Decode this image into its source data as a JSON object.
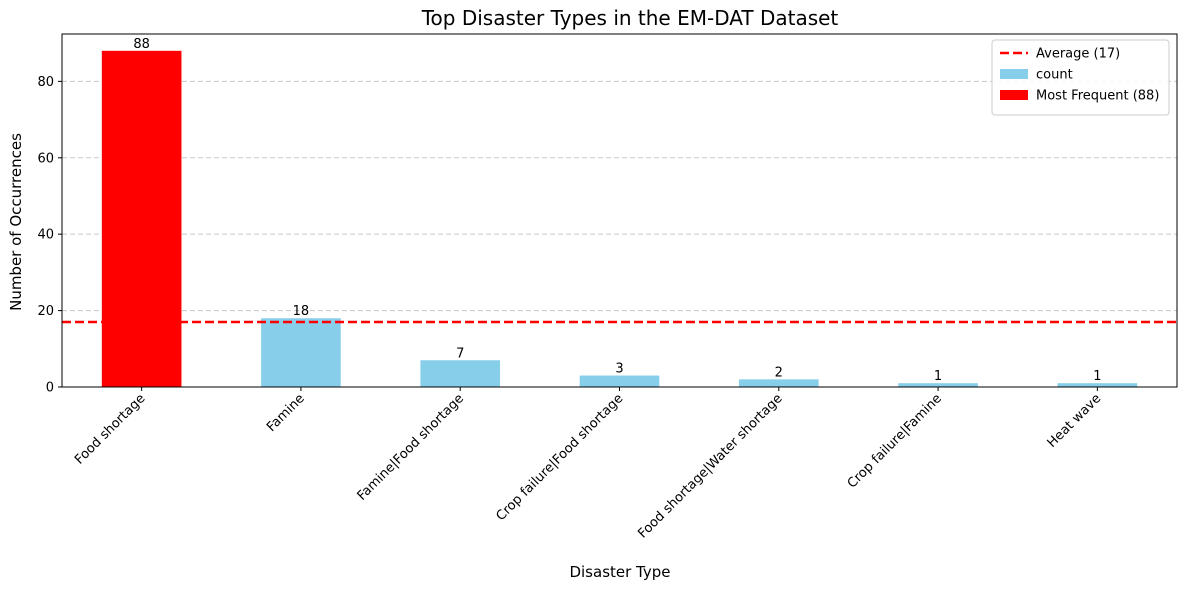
{
  "chart_data": {
    "type": "bar",
    "title": "Top Disaster Types in the EM-DAT Dataset",
    "xlabel": "Disaster Type",
    "ylabel": "Number of Occurrences",
    "categories": [
      "Food shortage",
      "Famine",
      "Famine|Food shortage",
      "Crop failure|Food shortage",
      "Food shortage|Water shortage",
      "Crop failure|Famine",
      "Heat wave"
    ],
    "values": [
      88,
      18,
      7,
      3,
      2,
      1,
      1
    ],
    "value_labels": [
      "88",
      "18",
      "7",
      "3",
      "2",
      "1",
      "1"
    ],
    "ylim": [
      0,
      92.4
    ],
    "yticks": [
      0,
      20,
      40,
      60,
      80
    ],
    "ytick_labels": [
      "0",
      "20",
      "40",
      "60",
      "80"
    ],
    "average": 17,
    "highlight_index": 0,
    "grid": "y-dashed",
    "legend_position": "top-right",
    "legend": [
      {
        "label": "Average (17)",
        "kind": "line",
        "color": "#ff0000"
      },
      {
        "label": "count",
        "kind": "patch",
        "color": "#87ceeb"
      },
      {
        "label": "Most Frequent (88)",
        "kind": "patch",
        "color": "#ff0000"
      }
    ],
    "colors": {
      "bar": "#87ceeb",
      "highlight": "#ff0000",
      "average_line": "#ff0000",
      "grid": "#c8c8c8"
    }
  }
}
